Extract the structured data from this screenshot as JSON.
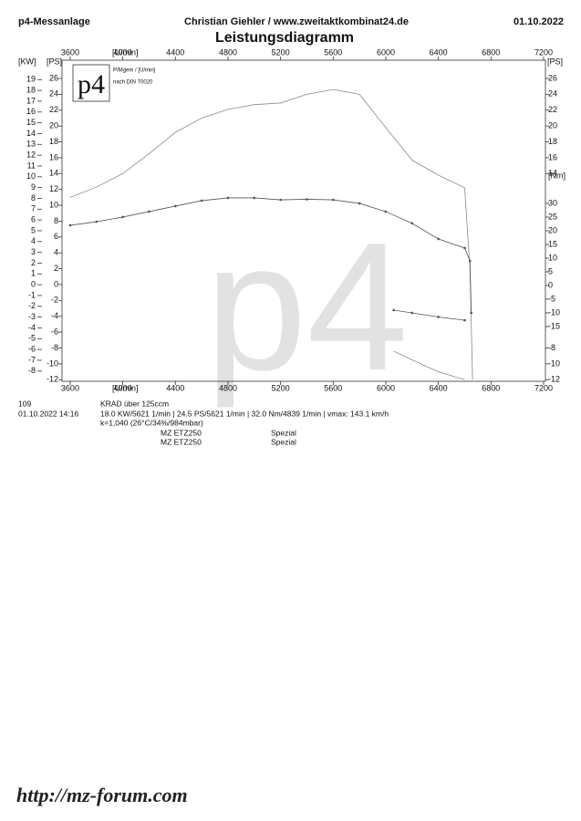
{
  "header": {
    "left": "p4-Messanlage",
    "center": "Christian Giehler / www.zweitaktkombinat24.de",
    "right": "01.10.2022"
  },
  "title": "Leistungsdiagramm",
  "logo": {
    "mark": "p4",
    "line1": "P/Mgem / [U/min]",
    "line2": "nach DIN 70020"
  },
  "watermark": "p4",
  "chart_data": {
    "type": "line",
    "x_label": "[U/min]",
    "y_label": "[PS]",
    "kw_label": "[KW]",
    "y_right_label": "[PS]",
    "y2_label": "[Nm]",
    "xlim": [
      3538,
      7214
    ],
    "xticks": [
      3600,
      4000,
      4400,
      4800,
      5200,
      5600,
      6000,
      6400,
      6800,
      7200
    ],
    "ylim": [
      -12.2,
      28.3
    ],
    "yticks": [
      26,
      24,
      22,
      20,
      18,
      16,
      14,
      12,
      10,
      8,
      6,
      4,
      2,
      0,
      -2,
      -4,
      -6,
      -8,
      -10,
      -12
    ],
    "y_right_ticks": [
      26,
      24,
      22,
      20,
      18,
      16,
      14,
      -8,
      -10,
      -12
    ],
    "kw_lim": [
      -8.95,
      20.8
    ],
    "kw_ticks": [
      19,
      18,
      17,
      16,
      15,
      14,
      13,
      12,
      11,
      10,
      9,
      8,
      7,
      6,
      5,
      4,
      3,
      2,
      1,
      0,
      -1,
      -2,
      -3,
      -4,
      -5,
      -6,
      -7,
      -8
    ],
    "y2lim": [
      -35,
      82.3
    ],
    "y2ticks": [
      30,
      25,
      20,
      15,
      10,
      5,
      0,
      -5,
      -10,
      -15
    ],
    "series": [
      {
        "color": "#8a8a8a",
        "axis": "y",
        "markers": false,
        "x": [
          3600,
          3800,
          4000,
          4200,
          4400,
          4600,
          4800,
          5000,
          5200,
          5400,
          5600,
          5800,
          6000,
          6200,
          6400,
          6600,
          6640,
          6660
        ],
        "values": [
          11.0,
          12.3,
          14.0,
          16.5,
          19.2,
          21.0,
          22.1,
          22.7,
          22.9,
          24.0,
          24.6,
          24.0,
          19.8,
          15.7,
          13.8,
          12.2,
          2.0,
          -12.0
        ]
      },
      {
        "color": "#8a8a8a",
        "axis": "y",
        "markers": false,
        "x": [
          6060,
          6200,
          6400,
          6600
        ],
        "values": [
          -8.4,
          -9.5,
          -11.0,
          -12.0
        ]
      },
      {
        "color": "#555555",
        "axis": "y2",
        "markers": true,
        "x": [
          3600,
          3800,
          4000,
          4200,
          4400,
          4600,
          4800,
          5000,
          5200,
          5400,
          5600,
          5800,
          6000,
          6200,
          6400,
          6600,
          6640,
          6650
        ],
        "values": [
          22,
          23.3,
          25,
          27,
          29,
          31,
          32,
          32,
          31.3,
          31.5,
          31.3,
          30,
          27,
          22.7,
          17,
          13.7,
          9,
          -10
        ]
      },
      {
        "color": "#555555",
        "axis": "y2",
        "markers": true,
        "x": [
          6060,
          6200,
          6400,
          6600
        ],
        "values": [
          -9,
          -10,
          -11.5,
          -12.7
        ]
      }
    ]
  },
  "footer": {
    "number": "109",
    "datetime": "01.10.2022  14:16",
    "class": "KRAD über 125ccm",
    "summary": "18.0 KW/5621 1/min  |  24.5 PS/5621 1/min  |  32.0 Nm/4839 1/min | vmax: 143.1 km/h",
    "conditions": "k=1,040 (26°C/34%/984mbar)",
    "rows": [
      [
        "MZ ETZ250",
        "Spezial"
      ],
      [
        "MZ ETZ250",
        "Spezial"
      ]
    ]
  },
  "site": "http://mz-forum.com"
}
